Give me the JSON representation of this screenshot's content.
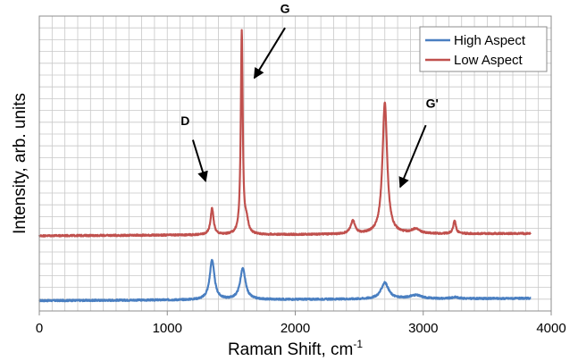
{
  "chart_data": {
    "type": "line",
    "xlabel": "Raman Shift, cm",
    "xlabel_superscript": "-1",
    "ylabel": "Intensity, arb. units",
    "xlim": [
      0,
      4000
    ],
    "ylim": [
      0,
      100
    ],
    "x_ticks": [
      "0",
      "1000",
      "2000",
      "3000",
      "4000"
    ],
    "grid": true,
    "legend_position": "top-right",
    "series": [
      {
        "name": "High Aspect",
        "color": "#4a7fc1",
        "baseline": 3.5,
        "x_range": [
          0,
          3840
        ],
        "peaks": [
          {
            "x": 1350,
            "height": 13.5,
            "width": 22
          },
          {
            "x": 1590,
            "height": 10.5,
            "width": 25
          },
          {
            "x": 2700,
            "height": 5.5,
            "width": 35
          },
          {
            "x": 2940,
            "height": 1.2,
            "width": 60
          },
          {
            "x": 3250,
            "height": 0.5,
            "width": 30
          }
        ]
      },
      {
        "name": "Low Aspect",
        "color": "#c0504d",
        "baseline": 25.5,
        "x_range": [
          0,
          3840
        ],
        "peaks": [
          {
            "x": 1350,
            "height": 9.0,
            "width": 14
          },
          {
            "x": 1582,
            "height": 69.0,
            "width": 9
          },
          {
            "x": 1620,
            "height": 4.0,
            "width": 16
          },
          {
            "x": 2450,
            "height": 4.5,
            "width": 20
          },
          {
            "x": 2700,
            "height": 44.5,
            "width": 22
          },
          {
            "x": 2940,
            "height": 1.5,
            "width": 40
          },
          {
            "x": 3245,
            "height": 4.5,
            "width": 12
          }
        ]
      }
    ],
    "annotations": [
      {
        "label": "D",
        "arrow_to": [
          1300,
          44
        ],
        "arrow_from": [
          1200,
          58
        ],
        "label_at": [
          1140,
          63
        ]
      },
      {
        "label": "G",
        "arrow_to": [
          1680,
          79
        ],
        "arrow_from": [
          1920,
          96
        ],
        "label_at": [
          1920,
          101
        ]
      },
      {
        "label": "G'",
        "arrow_to": [
          2820,
          42
        ],
        "arrow_from": [
          3020,
          63
        ],
        "label_at": [
          3070,
          69
        ]
      }
    ]
  }
}
